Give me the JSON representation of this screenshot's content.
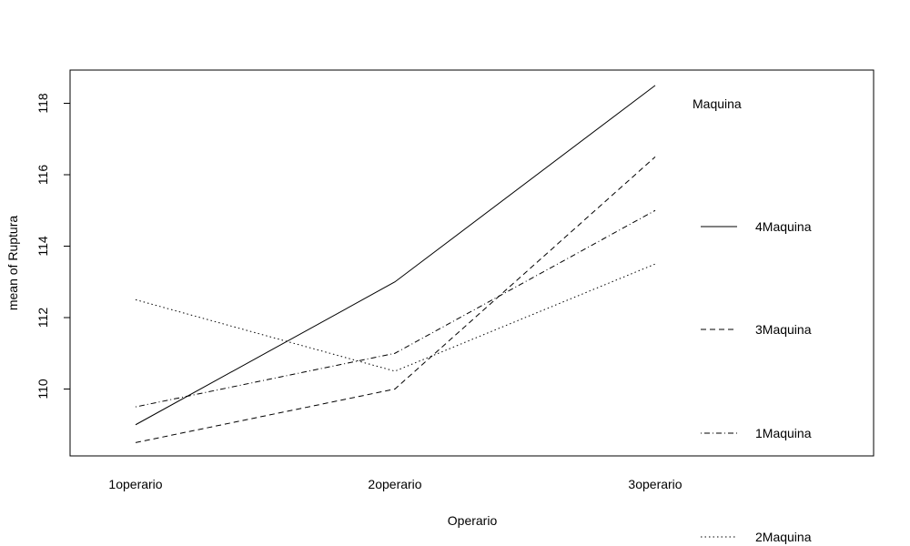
{
  "chart_data": {
    "type": "line",
    "xlabel": "Operario",
    "ylabel": "mean of  Ruptura",
    "categories": [
      "1operario",
      "2operario",
      "3operario"
    ],
    "ylim": [
      108,
      119
    ],
    "yticks": [
      110,
      112,
      114,
      116,
      118
    ],
    "grid": false,
    "legend": {
      "title": "Maquina",
      "placement": "right"
    },
    "series": [
      {
        "name": "4Maquina",
        "dash": "solid",
        "values": [
          109.0,
          113.0,
          118.5
        ]
      },
      {
        "name": "3Maquina",
        "dash": "dashed",
        "values": [
          108.5,
          110.0,
          116.5
        ]
      },
      {
        "name": "1Maquina",
        "dash": "dotdash",
        "values": [
          109.5,
          111.0,
          115.0
        ]
      },
      {
        "name": "2Maquina",
        "dash": "dotted",
        "values": [
          112.5,
          110.5,
          113.5
        ]
      }
    ]
  }
}
